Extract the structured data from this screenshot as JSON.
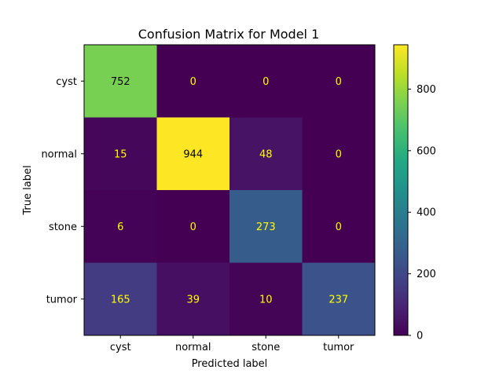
{
  "chart_data": {
    "type": "heatmap",
    "title": "Confusion Matrix for Model 1",
    "xlabel": "Predicted label",
    "ylabel": "True label",
    "x_categories": [
      "cyst",
      "normal",
      "stone",
      "tumor"
    ],
    "y_categories": [
      "cyst",
      "normal",
      "stone",
      "tumor"
    ],
    "values": [
      [
        752,
        0,
        0,
        0
      ],
      [
        15,
        944,
        48,
        0
      ],
      [
        6,
        0,
        273,
        0
      ],
      [
        165,
        39,
        10,
        237
      ]
    ],
    "colormap": "viridis",
    "color_range": [
      0,
      944
    ],
    "colorbar_ticks": [
      0,
      200,
      400,
      600,
      800
    ],
    "colorbar_tick_labels": [
      "0",
      "200",
      "400",
      "600",
      "800"
    ],
    "text_color_light": "#ffff00",
    "text_color_dark": "#000000"
  }
}
